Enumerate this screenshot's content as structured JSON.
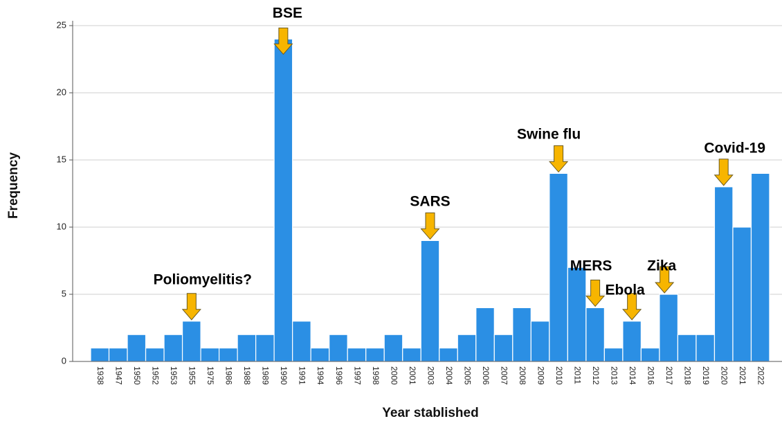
{
  "chart_data": {
    "type": "bar",
    "x_label": "Year stablished",
    "y_label": "Frequency",
    "categories": [
      "1938",
      "1947",
      "1950",
      "1952",
      "1953",
      "1955",
      "1975",
      "1986",
      "1988",
      "1989",
      "1990",
      "1991",
      "1994",
      "1996",
      "1997",
      "1998",
      "2000",
      "2001",
      "2003",
      "2004",
      "2005",
      "2006",
      "2007",
      "2008",
      "2009",
      "2010",
      "2011",
      "2012",
      "2013",
      "2014",
      "2016",
      "2017",
      "2018",
      "2019",
      "2020",
      "2021",
      "2022"
    ],
    "values": [
      1,
      1,
      2,
      1,
      2,
      3,
      1,
      1,
      2,
      2,
      24,
      3,
      1,
      2,
      1,
      1,
      2,
      1,
      9,
      1,
      2,
      4,
      2,
      4,
      3,
      14,
      7,
      4,
      1,
      3,
      1,
      5,
      2,
      2,
      13,
      10,
      14
    ],
    "color": "#2b8fe4",
    "ylim": [
      0,
      25
    ],
    "yticks": [
      0,
      5,
      10,
      15,
      20,
      25
    ],
    "grid": true,
    "annotations": [
      {
        "text": "Poliomyelitis?",
        "x": "1955"
      },
      {
        "text": "BSE",
        "x": "1990"
      },
      {
        "text": "SARS",
        "x": "2003"
      },
      {
        "text": "Swine flu",
        "x": "2010"
      },
      {
        "text": "MERS",
        "x": "2012"
      },
      {
        "text": "Ebola",
        "x": "2014"
      },
      {
        "text": "Zika",
        "x": "2017"
      },
      {
        "text": "Covid-19",
        "x": "2020"
      }
    ]
  }
}
